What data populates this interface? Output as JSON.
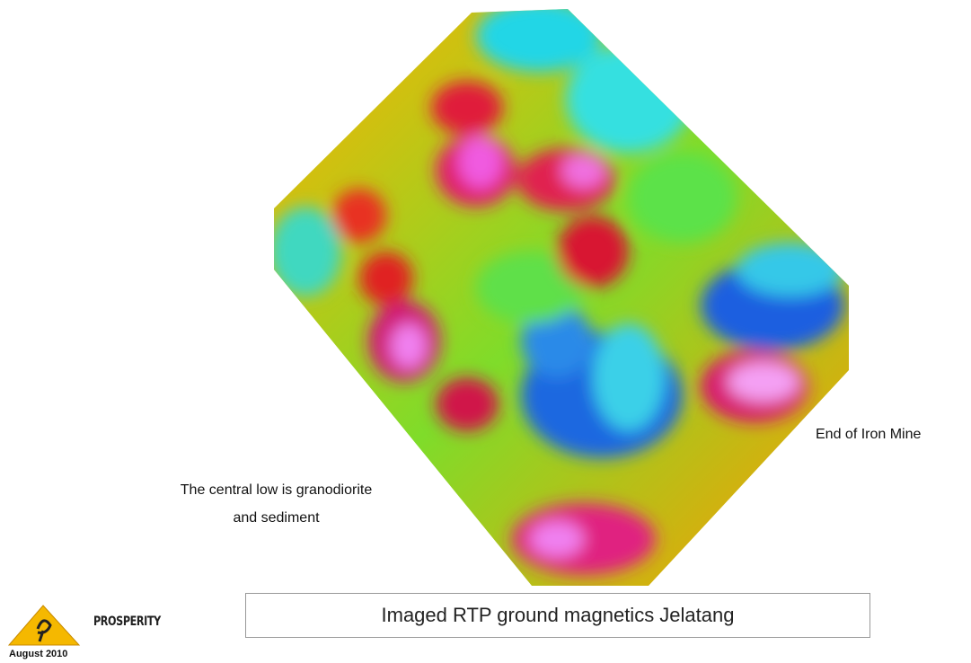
{
  "annotations": {
    "central_low": [
      "The central low is granodiorite",
      "and sediment"
    ],
    "iron_mine": "End of Iron Mine"
  },
  "caption": "Imaged RTP ground magnetics Jelatang",
  "logo": {
    "name": "PROSPERITY",
    "date": "August 2010"
  }
}
